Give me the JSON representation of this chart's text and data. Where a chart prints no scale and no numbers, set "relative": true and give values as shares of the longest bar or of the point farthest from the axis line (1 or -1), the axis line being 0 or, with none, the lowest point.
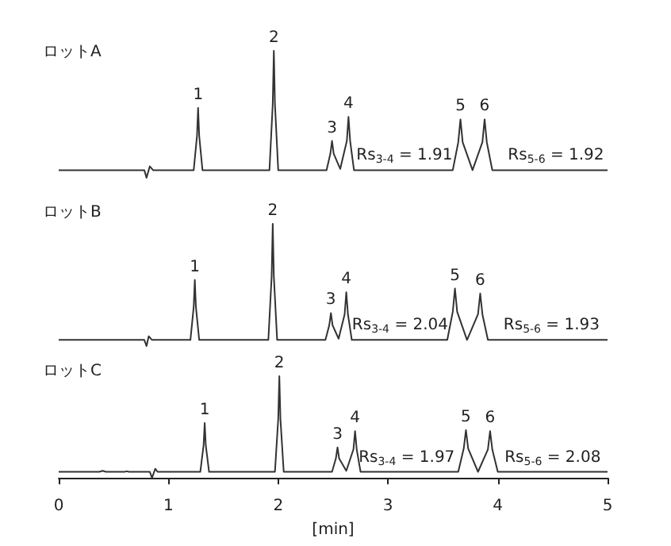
{
  "chart_data": [
    {
      "type": "line",
      "title": "ロットA",
      "relative": true,
      "xlim": [
        0,
        5
      ],
      "tick_labels": false,
      "marker": "none",
      "series": [
        {
          "color": "#333333",
          "x": [
            0,
            0.5,
            0.78,
            0.8,
            0.83,
            0.86,
            1.23,
            1.26,
            1.27,
            1.28,
            1.31,
            1.92,
            1.95,
            1.96,
            1.97,
            2.0,
            2.44,
            2.475,
            2.49,
            2.505,
            2.565,
            2.625,
            2.64,
            2.655,
            2.69,
            3.59,
            3.64,
            3.66,
            3.68,
            3.77,
            3.86,
            3.88,
            3.9,
            3.95,
            5
          ],
          "values": [
            0.06,
            0.06,
            0.06,
            0.0,
            0.09,
            0.06,
            0.06,
            0.33,
            0.55,
            0.33,
            0.06,
            0.06,
            0.58,
            1,
            0.58,
            0.06,
            0.06,
            0.19,
            0.29,
            0.19,
            0.07,
            0.29,
            0.48,
            0.29,
            0.06,
            0.06,
            0.28,
            0.46,
            0.28,
            0.06,
            0.28,
            0.46,
            0.28,
            0.06,
            0.06
          ]
        }
      ],
      "annotations": [
        {
          "text": "1",
          "x": 1.27,
          "y": 0.55
        },
        {
          "text": "2",
          "x": 1.96,
          "y": 1
        },
        {
          "text": "3",
          "x": 2.49,
          "y": 0.29
        },
        {
          "text": "4",
          "x": 2.64,
          "y": 0.48
        },
        {
          "text": "5",
          "x": 3.66,
          "y": 0.46
        },
        {
          "text": "6",
          "x": 3.88,
          "y": 0.46
        },
        {
          "text": "Rs$_{3-4}$ = 1.91",
          "x": 3.15,
          "y": 0.06
        },
        {
          "text": "Rs$_{5-6}$ = 1.92",
          "x": 4.53,
          "y": 0.06
        }
      ]
    },
    {
      "type": "line",
      "title": "ロットB",
      "relative": true,
      "xlim": [
        0,
        5
      ],
      "tick_labels": false,
      "marker": "none",
      "series": [
        {
          "color": "#333333",
          "x": [
            0,
            0.78,
            0.8,
            0.82,
            0.85,
            1.2,
            1.23,
            1.24,
            1.25,
            1.28,
            1.91,
            1.94,
            1.95,
            1.96,
            1.99,
            2.43,
            2.465,
            2.48,
            2.495,
            2.55,
            2.605,
            2.62,
            2.635,
            2.67,
            3.54,
            3.59,
            3.61,
            3.63,
            3.72,
            3.82,
            3.84,
            3.86,
            3.91,
            5
          ],
          "values": [
            0.05,
            0.05,
            0.0,
            0.08,
            0.05,
            0.05,
            0.32,
            0.54,
            0.32,
            0.05,
            0.05,
            0.57,
            1,
            0.57,
            0.05,
            0.05,
            0.17,
            0.27,
            0.17,
            0.06,
            0.26,
            0.44,
            0.26,
            0.05,
            0.05,
            0.28,
            0.47,
            0.28,
            0.05,
            0.26,
            0.43,
            0.26,
            0.05,
            0.05
          ]
        }
      ],
      "annotations": [
        {
          "text": "1",
          "x": 1.24,
          "y": 0.54
        },
        {
          "text": "2",
          "x": 1.95,
          "y": 1
        },
        {
          "text": "3",
          "x": 2.48,
          "y": 0.27
        },
        {
          "text": "4",
          "x": 2.62,
          "y": 0.44
        },
        {
          "text": "5",
          "x": 3.61,
          "y": 0.47
        },
        {
          "text": "6",
          "x": 3.84,
          "y": 0.43
        },
        {
          "text": "Rs$_{3-4}$ = 2.04",
          "x": 3.11,
          "y": 0.05
        },
        {
          "text": "Rs$_{5-6}$ = 1.93",
          "x": 4.49,
          "y": 0.05
        }
      ]
    },
    {
      "type": "line",
      "title": "ロットC",
      "relative": true,
      "xlim": [
        0,
        5
      ],
      "xticks": [
        0,
        1,
        2,
        3,
        4,
        5
      ],
      "xlabel": "[min]",
      "tick_labels": "x",
      "marker": "none",
      "series": [
        {
          "color": "#333333",
          "x": [
            0,
            0.37,
            0.4,
            0.43,
            0.6,
            0.62,
            0.64,
            0.83,
            0.85,
            0.88,
            0.9,
            1.29,
            1.32,
            1.33,
            1.34,
            1.37,
            1.97,
            2.0,
            2.01,
            2.02,
            2.05,
            2.49,
            2.525,
            2.54,
            2.555,
            2.62,
            2.685,
            2.7,
            2.715,
            2.75,
            3.64,
            3.69,
            3.71,
            3.73,
            3.82,
            3.91,
            3.93,
            3.95,
            4.0,
            5
          ],
          "values": [
            0.06,
            0.06,
            0.07,
            0.06,
            0.06,
            0.065,
            0.06,
            0.06,
            0.0,
            0.09,
            0.06,
            0.06,
            0.32,
            0.54,
            0.32,
            0.06,
            0.06,
            0.58,
            1,
            0.58,
            0.06,
            0.06,
            0.19,
            0.3,
            0.19,
            0.07,
            0.28,
            0.46,
            0.28,
            0.06,
            0.06,
            0.29,
            0.47,
            0.29,
            0.06,
            0.28,
            0.46,
            0.28,
            0.06,
            0.06
          ]
        }
      ],
      "annotations": [
        {
          "text": "1",
          "x": 1.33,
          "y": 0.54
        },
        {
          "text": "2",
          "x": 2.01,
          "y": 1
        },
        {
          "text": "3",
          "x": 2.54,
          "y": 0.3
        },
        {
          "text": "4",
          "x": 2.7,
          "y": 0.46
        },
        {
          "text": "5",
          "x": 3.71,
          "y": 0.47
        },
        {
          "text": "6",
          "x": 3.93,
          "y": 0.46
        },
        {
          "text": "Rs$_{3-4}$ = 1.97",
          "x": 3.17,
          "y": 0.06
        },
        {
          "text": "Rs$_{5-6}$ = 2.08",
          "x": 4.5,
          "y": 0.06
        }
      ]
    }
  ]
}
